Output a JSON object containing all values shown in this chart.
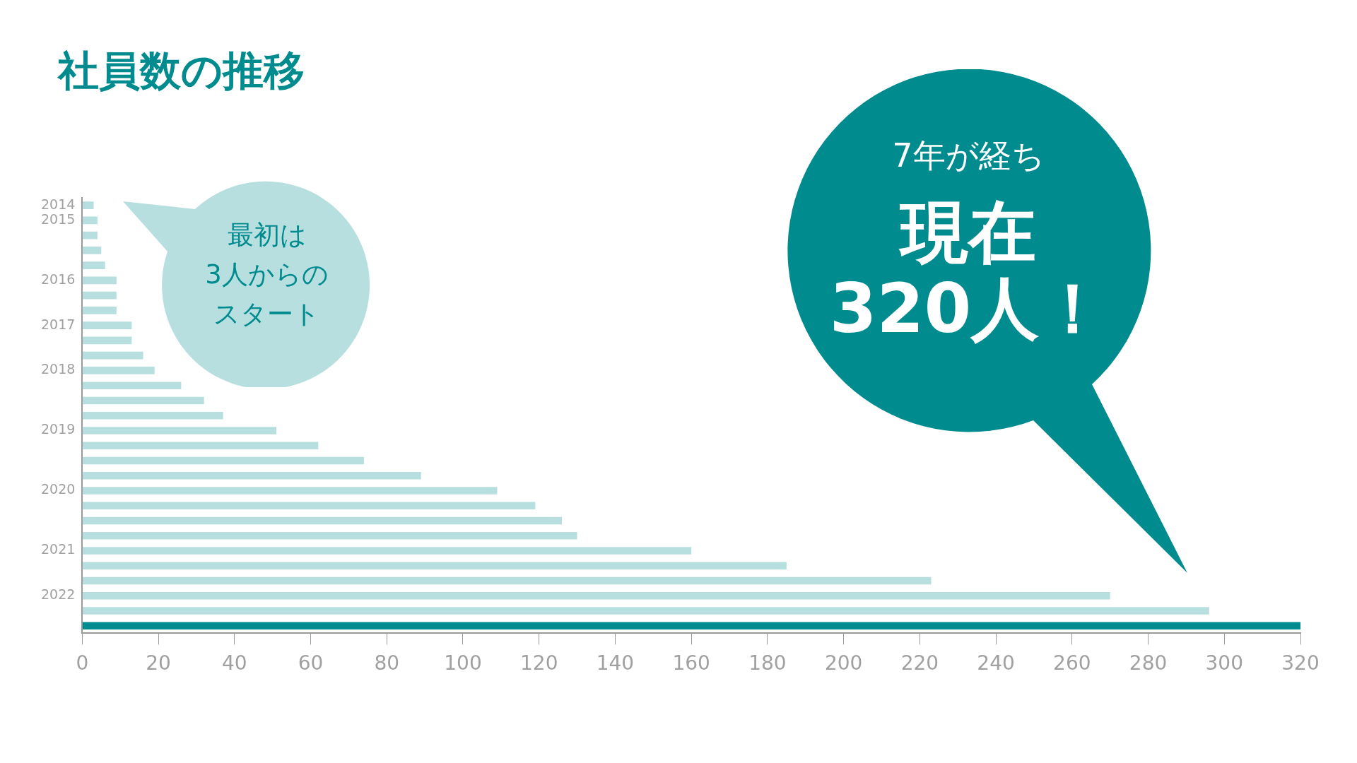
{
  "chart_data": {
    "type": "bar",
    "orientation": "horizontal",
    "title": "社員数の推移",
    "categories": [
      "2014",
      "2015",
      null,
      null,
      null,
      "2016",
      null,
      null,
      "2017",
      null,
      null,
      "2018",
      null,
      null,
      null,
      "2019",
      null,
      null,
      null,
      "2020",
      null,
      null,
      null,
      "2021",
      null,
      null,
      "2022",
      null,
      null
    ],
    "values": [
      3,
      4,
      4,
      5,
      6,
      9,
      9,
      9,
      13,
      13,
      16,
      19,
      26,
      32,
      37,
      51,
      62,
      74,
      89,
      109,
      119,
      126,
      130,
      160,
      185,
      223,
      270,
      296,
      320
    ],
    "colors": [
      "#b8dfe0",
      "#b8dfe0",
      "#b8dfe0",
      "#b8dfe0",
      "#b8dfe0",
      "#b8dfe0",
      "#b8dfe0",
      "#b8dfe0",
      "#b8dfe0",
      "#b8dfe0",
      "#b8dfe0",
      "#b8dfe0",
      "#b8dfe0",
      "#b8dfe0",
      "#b8dfe0",
      "#b8dfe0",
      "#b8dfe0",
      "#b8dfe0",
      "#b8dfe0",
      "#b8dfe0",
      "#b8dfe0",
      "#b8dfe0",
      "#b8dfe0",
      "#b8dfe0",
      "#b8dfe0",
      "#b8dfe0",
      "#b8dfe0",
      "#b8dfe0",
      "#008b8f"
    ],
    "xlim": [
      0,
      320
    ],
    "xticks": [
      0,
      20,
      40,
      60,
      80,
      100,
      120,
      140,
      160,
      180,
      200,
      220,
      240,
      260,
      280,
      300,
      320
    ],
    "annotations": [
      "最初は",
      "3人からの",
      "スタート",
      "7年が経ち",
      "現在",
      "320人！"
    ]
  }
}
